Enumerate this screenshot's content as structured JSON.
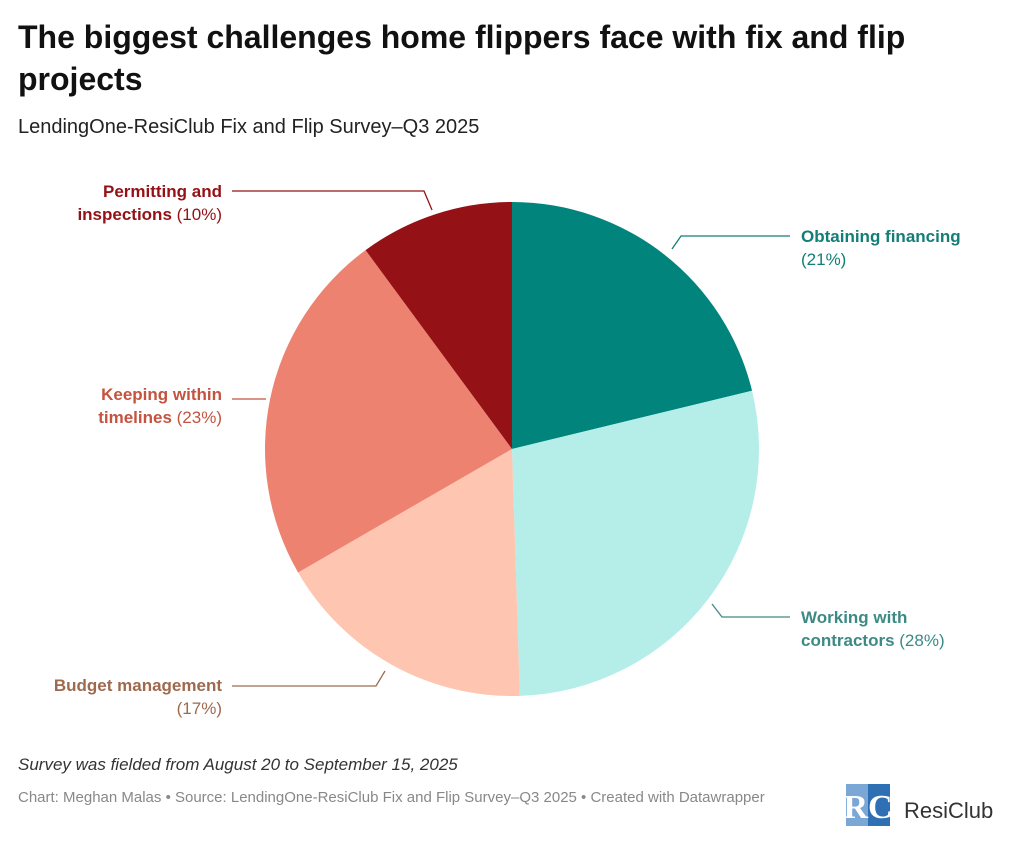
{
  "chart_data": {
    "type": "pie",
    "title": "The biggest challenges home flippers face with fix and flip projects",
    "subtitle": "LendingOne-ResiClub Fix and Flip Survey–Q3 2025",
    "categories": [
      "Obtaining financing",
      "Working with contractors",
      "Budget management",
      "Keeping within timelines",
      "Permitting and inspections"
    ],
    "values": [
      21,
      28,
      17,
      23,
      10
    ],
    "value_labels": [
      "(21%)",
      "(28%)",
      "(17%)",
      "(23%)",
      "(10%)"
    ],
    "colors": [
      "#00847c",
      "#b5ede9",
      "#fec6b0",
      "#ed8270",
      "#941115"
    ],
    "label_colors": [
      "#137d77",
      "#3d8a85",
      "#9e6a4d",
      "#c4533f",
      "#941115"
    ],
    "note": "Survey was fielded from August 20 to September 15, 2025",
    "credit": "Chart: Meghan Malas • Source: LendingOne-ResiClub Fix and Flip Survey–Q3 2025 • Created with Datawrapper",
    "logo": "ResiClub"
  }
}
